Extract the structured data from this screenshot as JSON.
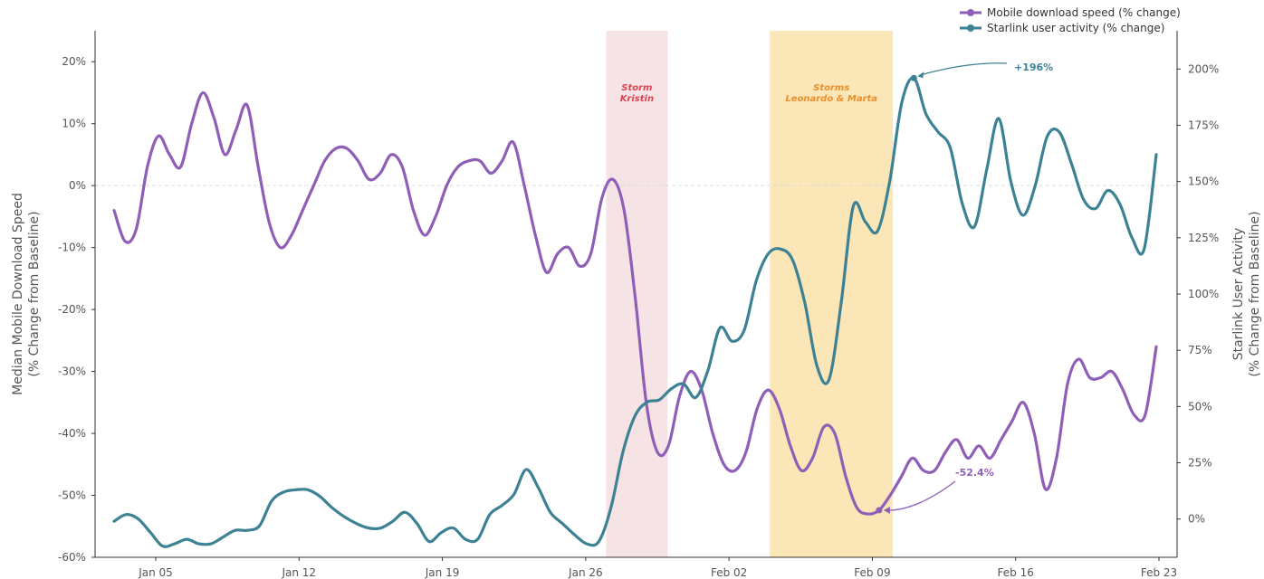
{
  "chart_data": {
    "type": "line",
    "x_start": "2025-01-03",
    "y_left": {
      "label_line1": "Median Mobile Download Speed",
      "label_line2": "(% Change from Baseline)",
      "ticks": [
        20,
        10,
        0,
        -10,
        -20,
        -30,
        -40,
        -50,
        -60
      ],
      "tick_labels": [
        "20%",
        "10%",
        "0%",
        "-10%",
        "-20%",
        "-30%",
        "-40%",
        "-50%",
        "-60%"
      ],
      "range": [
        -60,
        25
      ]
    },
    "y_right": {
      "label_line1": "Starlink User Activity",
      "label_line2": "(% Change from Baseline)",
      "ticks": [
        200,
        175,
        150,
        125,
        100,
        75,
        50,
        25,
        0
      ],
      "tick_labels": [
        "200%",
        "175%",
        "150%",
        "125%",
        "100%",
        "75%",
        "50%",
        "25%",
        "0%"
      ],
      "range": [
        -17,
        217
      ]
    },
    "x_axis": {
      "ticks": [
        {
          "label": "Jan 05",
          "date": "2025-01-05"
        },
        {
          "label": "Jan 12",
          "date": "2025-01-12"
        },
        {
          "label": "Jan 19",
          "date": "2025-01-19"
        },
        {
          "label": "Jan 26",
          "date": "2025-01-26"
        },
        {
          "label": "Feb 02",
          "date": "2025-02-02"
        },
        {
          "label": "Feb 09",
          "date": "2025-02-09"
        },
        {
          "label": "Feb 16",
          "date": "2025-02-16"
        },
        {
          "label": "Feb 23",
          "date": "2025-02-23"
        }
      ]
    },
    "shaded_regions": [
      {
        "lines": [
          "Storm",
          "Kristin"
        ],
        "start": "2025-01-27",
        "end": "2025-01-30",
        "color": "#e8c2c6",
        "text_color": "#d94452"
      },
      {
        "lines": [
          "Storms",
          "Leonardo & Marta"
        ],
        "start": "2025-02-04",
        "end": "2025-02-10",
        "color": "#f5d27a",
        "text_color": "#e9902a"
      }
    ],
    "series": [
      {
        "name": "Mobile download speed (% change)",
        "axis": "left",
        "color": "#8f5fb8",
        "points": [
          [
            "2025-01-03",
            -4
          ],
          [
            "2025-01-03.5",
            -9
          ],
          [
            "2025-01-04",
            -7
          ],
          [
            "2025-01-04.5",
            3
          ],
          [
            "2025-01-05",
            8
          ],
          [
            "2025-01-05.5",
            5
          ],
          [
            "2025-01-06",
            3
          ],
          [
            "2025-01-06.5",
            10
          ],
          [
            "2025-01-07",
            15
          ],
          [
            "2025-01-07.5",
            11
          ],
          [
            "2025-01-08",
            5
          ],
          [
            "2025-01-08.5",
            9
          ],
          [
            "2025-01-09",
            13
          ],
          [
            "2025-01-09.5",
            3
          ],
          [
            "2025-01-10",
            -6
          ],
          [
            "2025-01-10.5",
            -10
          ],
          [
            "2025-01-11",
            -8
          ],
          [
            "2025-01-11.5",
            -4
          ],
          [
            "2025-01-12",
            0
          ],
          [
            "2025-01-12.5",
            4
          ],
          [
            "2025-01-13",
            6
          ],
          [
            "2025-01-13.5",
            6
          ],
          [
            "2025-01-14",
            4
          ],
          [
            "2025-01-14.5",
            1
          ],
          [
            "2025-01-15",
            2
          ],
          [
            "2025-01-15.5",
            5
          ],
          [
            "2025-01-16",
            3
          ],
          [
            "2025-01-16.5",
            -4
          ],
          [
            "2025-01-17",
            -8
          ],
          [
            "2025-01-17.5",
            -5
          ],
          [
            "2025-01-18",
            0
          ],
          [
            "2025-01-18.5",
            3
          ],
          [
            "2025-01-19",
            4
          ],
          [
            "2025-01-19.5",
            4
          ],
          [
            "2025-01-20",
            2
          ],
          [
            "2025-01-20.5",
            4
          ],
          [
            "2025-01-21",
            7
          ],
          [
            "2025-01-21.5",
            0
          ],
          [
            "2025-01-22",
            -8
          ],
          [
            "2025-01-22.5",
            -14
          ],
          [
            "2025-01-23",
            -11
          ],
          [
            "2025-01-23.5",
            -10
          ],
          [
            "2025-01-24",
            -13
          ],
          [
            "2025-01-24.5",
            -11
          ],
          [
            "2025-01-25",
            -2
          ],
          [
            "2025-01-25.5",
            1
          ],
          [
            "2025-01-26",
            -4
          ],
          [
            "2025-01-26.5",
            -18
          ],
          [
            "2025-01-27",
            -35
          ],
          [
            "2025-01-27.5",
            -43
          ],
          [
            "2025-01-28",
            -42
          ],
          [
            "2025-01-28.5",
            -34
          ],
          [
            "2025-01-29",
            -30
          ],
          [
            "2025-01-29.5",
            -33
          ],
          [
            "2025-01-30",
            -40
          ],
          [
            "2025-01-30.5",
            -45
          ],
          [
            "2025-01-31",
            -46
          ],
          [
            "2025-01-31.5",
            -43
          ],
          [
            "2025-02-01",
            -36
          ],
          [
            "2025-02-01.5",
            -33
          ],
          [
            "2025-02-02",
            -36
          ],
          [
            "2025-02-02.5",
            -42
          ],
          [
            "2025-02-03",
            -46
          ],
          [
            "2025-02-03.5",
            -44
          ],
          [
            "2025-02-04",
            -39
          ],
          [
            "2025-02-04.5",
            -40
          ],
          [
            "2025-02-05",
            -47
          ],
          [
            "2025-02-05.5",
            -52
          ],
          [
            "2025-02-06",
            -53
          ],
          [
            "2025-02-06.5",
            -52.4
          ],
          [
            "2025-02-07",
            -50
          ],
          [
            "2025-02-07.5",
            -47
          ],
          [
            "2025-02-08",
            -44
          ],
          [
            "2025-02-08.5",
            -46
          ],
          [
            "2025-02-09",
            -46
          ],
          [
            "2025-02-09.5",
            -43
          ],
          [
            "2025-02-10",
            -41
          ],
          [
            "2025-02-10.5",
            -44
          ],
          [
            "2025-02-11",
            -42
          ],
          [
            "2025-02-11.5",
            -44
          ],
          [
            "2025-02-12",
            -41
          ],
          [
            "2025-02-12.5",
            -38
          ],
          [
            "2025-02-13",
            -35
          ],
          [
            "2025-02-13.5",
            -40
          ],
          [
            "2025-02-14",
            -49
          ],
          [
            "2025-02-14.5",
            -44
          ],
          [
            "2025-02-15",
            -32
          ],
          [
            "2025-02-15.5",
            -28
          ],
          [
            "2025-02-16",
            -31
          ],
          [
            "2025-02-16.5",
            -31
          ],
          [
            "2025-02-17",
            -30
          ],
          [
            "2025-02-17.5",
            -33
          ],
          [
            "2025-02-18",
            -37
          ],
          [
            "2025-02-18.5",
            -37
          ],
          [
            "2025-02-19",
            -26
          ]
        ]
      },
      {
        "name": "Starlink user activity (% change)",
        "axis": "right",
        "color": "#3d8294",
        "points": [
          [
            "2025-01-03",
            -1
          ],
          [
            "2025-01-03.5",
            2
          ],
          [
            "2025-01-04",
            0
          ],
          [
            "2025-01-04.5",
            -6
          ],
          [
            "2025-01-05",
            -12
          ],
          [
            "2025-01-05.5",
            -11
          ],
          [
            "2025-01-06",
            -9
          ],
          [
            "2025-01-06.5",
            -11
          ],
          [
            "2025-01-07",
            -11
          ],
          [
            "2025-01-07.5",
            -8
          ],
          [
            "2025-01-08",
            -5
          ],
          [
            "2025-01-08.5",
            -5
          ],
          [
            "2025-01-09",
            -3
          ],
          [
            "2025-01-09.5",
            8
          ],
          [
            "2025-01-10",
            12
          ],
          [
            "2025-01-10.5",
            13
          ],
          [
            "2025-01-11",
            13
          ],
          [
            "2025-01-11.5",
            10
          ],
          [
            "2025-01-12",
            5
          ],
          [
            "2025-01-12.5",
            1
          ],
          [
            "2025-01-13",
            -2
          ],
          [
            "2025-01-13.5",
            -4
          ],
          [
            "2025-01-14",
            -4
          ],
          [
            "2025-01-14.5",
            -1
          ],
          [
            "2025-01-15",
            3
          ],
          [
            "2025-01-15.5",
            -2
          ],
          [
            "2025-01-16",
            -10
          ],
          [
            "2025-01-16.5",
            -6
          ],
          [
            "2025-01-17",
            -4
          ],
          [
            "2025-01-17.5",
            -9
          ],
          [
            "2025-01-18",
            -9
          ],
          [
            "2025-01-18.5",
            2
          ],
          [
            "2025-01-19",
            6
          ],
          [
            "2025-01-19.5",
            11
          ],
          [
            "2025-01-20",
            22
          ],
          [
            "2025-01-20.5",
            14
          ],
          [
            "2025-01-21",
            3
          ],
          [
            "2025-01-21.5",
            -2
          ],
          [
            "2025-01-22",
            -7
          ],
          [
            "2025-01-22.5",
            -11
          ],
          [
            "2025-01-23",
            -10
          ],
          [
            "2025-01-23.5",
            5
          ],
          [
            "2025-01-24",
            30
          ],
          [
            "2025-01-24.5",
            46
          ],
          [
            "2025-01-25",
            52
          ],
          [
            "2025-01-25.5",
            53
          ],
          [
            "2025-01-26",
            58
          ],
          [
            "2025-01-26.5",
            60
          ],
          [
            "2025-01-27",
            54
          ],
          [
            "2025-01-27.5",
            66
          ],
          [
            "2025-01-28",
            85
          ],
          [
            "2025-01-28.5",
            79
          ],
          [
            "2025-01-29",
            84
          ],
          [
            "2025-01-29.5",
            106
          ],
          [
            "2025-01-30",
            118
          ],
          [
            "2025-01-30.5",
            120
          ],
          [
            "2025-01-31",
            115
          ],
          [
            "2025-01-31.5",
            96
          ],
          [
            "2025-02-01",
            68
          ],
          [
            "2025-02-01.5",
            62
          ],
          [
            "2025-02-02",
            96
          ],
          [
            "2025-02-02.5",
            139
          ],
          [
            "2025-02-03",
            132
          ],
          [
            "2025-02-03.5",
            128
          ],
          [
            "2025-02-04",
            150
          ],
          [
            "2025-02-04.5",
            185
          ],
          [
            "2025-02-05",
            196
          ],
          [
            "2025-02-05.5",
            180
          ],
          [
            "2025-02-06",
            172
          ],
          [
            "2025-02-06.5",
            165
          ],
          [
            "2025-02-07",
            140
          ],
          [
            "2025-02-07.5",
            130
          ],
          [
            "2025-02-08",
            155
          ],
          [
            "2025-02-08.5",
            178
          ],
          [
            "2025-02-09",
            150
          ],
          [
            "2025-02-09.5",
            135
          ],
          [
            "2025-02-10",
            148
          ],
          [
            "2025-02-10.5",
            170
          ],
          [
            "2025-02-11",
            172
          ],
          [
            "2025-02-11.5",
            158
          ],
          [
            "2025-02-12",
            142
          ],
          [
            "2025-02-12.5",
            138
          ],
          [
            "2025-02-13",
            146
          ],
          [
            "2025-02-13.5",
            140
          ],
          [
            "2025-02-14",
            125
          ],
          [
            "2025-02-14.5",
            120
          ],
          [
            "2025-02-15",
            162
          ]
        ]
      }
    ],
    "annotations": [
      {
        "text": "+196%",
        "color": "#3d8294"
      },
      {
        "text": "-52.4%",
        "color": "#8f5fb8"
      }
    ],
    "legend": "top-right",
    "grid": false
  }
}
